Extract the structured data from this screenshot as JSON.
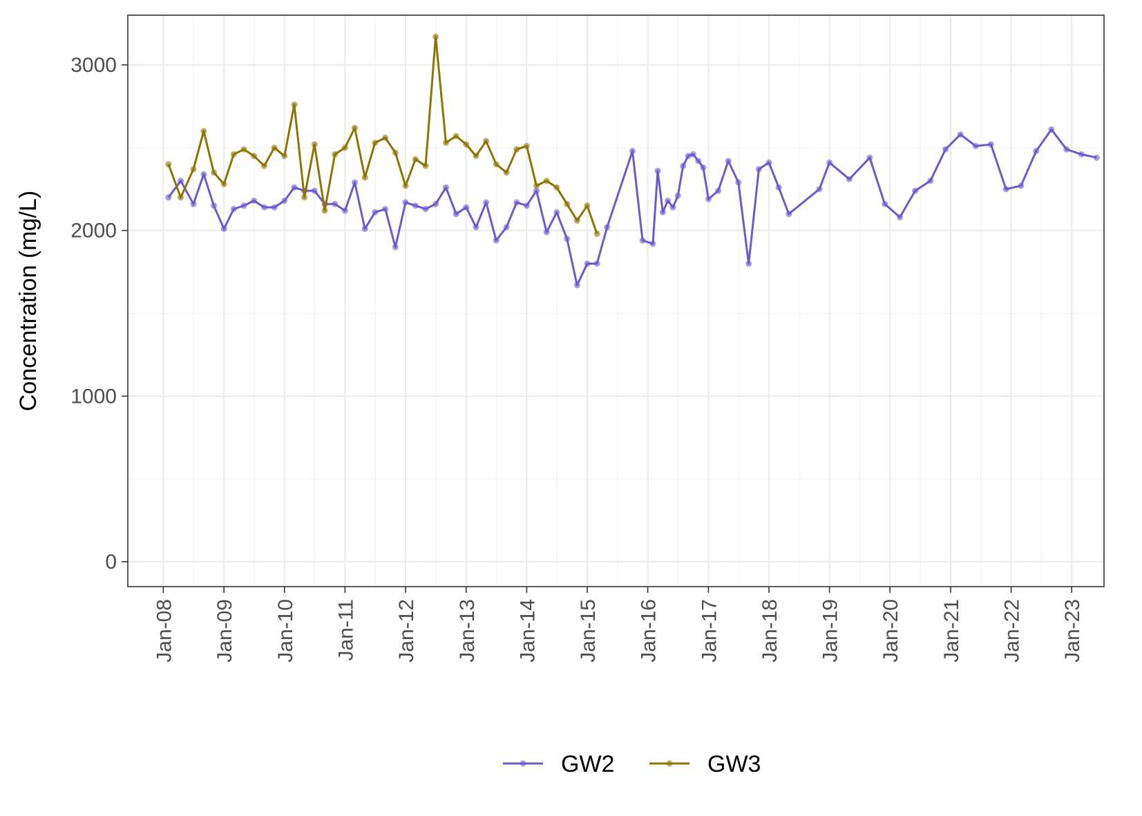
{
  "chart_data": {
    "type": "line",
    "ylabel": "Concentration (mg/L)",
    "xlabel": "",
    "ylim": [
      -150,
      3300
    ],
    "xlim": [
      "2007-06-01",
      "2023-07-15"
    ],
    "grid": true,
    "legend_position": "bottom",
    "y_ticks": [
      0,
      1000,
      2000,
      3000
    ],
    "y_tick_labels": [
      "0",
      "1000",
      "2000",
      "3000"
    ],
    "x_ticks": [
      "2008-01-01",
      "2009-01-01",
      "2010-01-01",
      "2011-01-01",
      "2012-01-01",
      "2013-01-01",
      "2014-01-01",
      "2015-01-01",
      "2016-01-01",
      "2017-01-01",
      "2018-01-01",
      "2019-01-01",
      "2020-01-01",
      "2021-01-01",
      "2022-01-01",
      "2023-01-01"
    ],
    "x_tick_labels": [
      "Jan-08",
      "Jan-09",
      "Jan-10",
      "Jan-11",
      "Jan-12",
      "Jan-13",
      "Jan-14",
      "Jan-15",
      "Jan-16",
      "Jan-17",
      "Jan-18",
      "Jan-19",
      "Jan-20",
      "Jan-21",
      "Jan-22",
      "Jan-23"
    ],
    "series": [
      {
        "name": "GW2",
        "color": "#6a5acd",
        "points": [
          [
            "2008-02-01",
            2200
          ],
          [
            "2008-04-15",
            2300
          ],
          [
            "2008-07-01",
            2160
          ],
          [
            "2008-09-01",
            2340
          ],
          [
            "2008-11-01",
            2150
          ],
          [
            "2009-01-01",
            2010
          ],
          [
            "2009-03-01",
            2130
          ],
          [
            "2009-05-01",
            2150
          ],
          [
            "2009-07-01",
            2180
          ],
          [
            "2009-09-01",
            2140
          ],
          [
            "2009-11-01",
            2140
          ],
          [
            "2010-01-01",
            2180
          ],
          [
            "2010-03-01",
            2260
          ],
          [
            "2010-05-01",
            2240
          ],
          [
            "2010-07-01",
            2240
          ],
          [
            "2010-09-01",
            2160
          ],
          [
            "2010-11-01",
            2160
          ],
          [
            "2011-01-01",
            2120
          ],
          [
            "2011-03-01",
            2290
          ],
          [
            "2011-05-01",
            2010
          ],
          [
            "2011-07-01",
            2110
          ],
          [
            "2011-09-01",
            2130
          ],
          [
            "2011-11-01",
            1900
          ],
          [
            "2012-01-01",
            2170
          ],
          [
            "2012-03-01",
            2150
          ],
          [
            "2012-05-01",
            2130
          ],
          [
            "2012-07-01",
            2160
          ],
          [
            "2012-09-01",
            2260
          ],
          [
            "2012-11-01",
            2100
          ],
          [
            "2013-01-01",
            2140
          ],
          [
            "2013-03-01",
            2020
          ],
          [
            "2013-05-01",
            2170
          ],
          [
            "2013-07-01",
            1940
          ],
          [
            "2013-09-01",
            2020
          ],
          [
            "2013-11-01",
            2170
          ],
          [
            "2014-01-01",
            2150
          ],
          [
            "2014-03-01",
            2240
          ],
          [
            "2014-05-01",
            1990
          ],
          [
            "2014-07-01",
            2110
          ],
          [
            "2014-09-01",
            1950
          ],
          [
            "2014-11-01",
            1670
          ],
          [
            "2015-01-01",
            1800
          ],
          [
            "2015-03-01",
            1800
          ],
          [
            "2015-05-01",
            2020
          ],
          [
            "2015-10-01",
            2480
          ],
          [
            "2015-12-01",
            1940
          ],
          [
            "2016-02-01",
            1920
          ],
          [
            "2016-03-01",
            2360
          ],
          [
            "2016-04-01",
            2110
          ],
          [
            "2016-05-01",
            2180
          ],
          [
            "2016-06-01",
            2140
          ],
          [
            "2016-07-01",
            2210
          ],
          [
            "2016-08-01",
            2390
          ],
          [
            "2016-09-01",
            2450
          ],
          [
            "2016-10-01",
            2460
          ],
          [
            "2016-11-01",
            2420
          ],
          [
            "2016-12-01",
            2380
          ],
          [
            "2017-01-01",
            2190
          ],
          [
            "2017-03-01",
            2240
          ],
          [
            "2017-05-01",
            2420
          ],
          [
            "2017-07-01",
            2290
          ],
          [
            "2017-09-01",
            1800
          ],
          [
            "2017-11-01",
            2370
          ],
          [
            "2018-01-01",
            2410
          ],
          [
            "2018-03-01",
            2260
          ],
          [
            "2018-05-01",
            2100
          ],
          [
            "2018-11-01",
            2250
          ],
          [
            "2019-01-01",
            2410
          ],
          [
            "2019-05-01",
            2310
          ],
          [
            "2019-09-01",
            2440
          ],
          [
            "2019-12-01",
            2160
          ],
          [
            "2020-03-01",
            2080
          ],
          [
            "2020-06-01",
            2240
          ],
          [
            "2020-09-01",
            2300
          ],
          [
            "2020-12-01",
            2490
          ],
          [
            "2021-03-01",
            2580
          ],
          [
            "2021-06-01",
            2510
          ],
          [
            "2021-09-01",
            2520
          ],
          [
            "2021-12-01",
            2250
          ],
          [
            "2022-03-01",
            2270
          ],
          [
            "2022-06-01",
            2480
          ],
          [
            "2022-09-01",
            2610
          ],
          [
            "2022-12-01",
            2490
          ],
          [
            "2023-03-01",
            2460
          ],
          [
            "2023-06-01",
            2440
          ]
        ]
      },
      {
        "name": "GW3",
        "color": "#8b7500",
        "points": [
          [
            "2008-02-01",
            2400
          ],
          [
            "2008-04-15",
            2200
          ],
          [
            "2008-07-01",
            2370
          ],
          [
            "2008-09-01",
            2600
          ],
          [
            "2008-11-01",
            2350
          ],
          [
            "2009-01-01",
            2280
          ],
          [
            "2009-03-01",
            2460
          ],
          [
            "2009-05-01",
            2490
          ],
          [
            "2009-07-01",
            2450
          ],
          [
            "2009-09-01",
            2390
          ],
          [
            "2009-11-01",
            2500
          ],
          [
            "2010-01-01",
            2450
          ],
          [
            "2010-03-01",
            2760
          ],
          [
            "2010-05-01",
            2200
          ],
          [
            "2010-07-01",
            2520
          ],
          [
            "2010-09-01",
            2120
          ],
          [
            "2010-11-01",
            2460
          ],
          [
            "2011-01-01",
            2500
          ],
          [
            "2011-03-01",
            2620
          ],
          [
            "2011-05-01",
            2320
          ],
          [
            "2011-07-01",
            2530
          ],
          [
            "2011-09-01",
            2560
          ],
          [
            "2011-11-01",
            2470
          ],
          [
            "2012-01-01",
            2270
          ],
          [
            "2012-03-01",
            2430
          ],
          [
            "2012-05-01",
            2390
          ],
          [
            "2012-07-01",
            3170
          ],
          [
            "2012-09-01",
            2530
          ],
          [
            "2012-11-01",
            2570
          ],
          [
            "2013-01-01",
            2520
          ],
          [
            "2013-03-01",
            2450
          ],
          [
            "2013-05-01",
            2540
          ],
          [
            "2013-07-01",
            2400
          ],
          [
            "2013-09-01",
            2350
          ],
          [
            "2013-11-01",
            2490
          ],
          [
            "2014-01-01",
            2510
          ],
          [
            "2014-03-01",
            2270
          ],
          [
            "2014-05-01",
            2300
          ],
          [
            "2014-07-01",
            2260
          ],
          [
            "2014-09-01",
            2160
          ],
          [
            "2014-11-01",
            2060
          ],
          [
            "2015-01-01",
            2150
          ],
          [
            "2015-03-01",
            1980
          ]
        ]
      }
    ]
  }
}
